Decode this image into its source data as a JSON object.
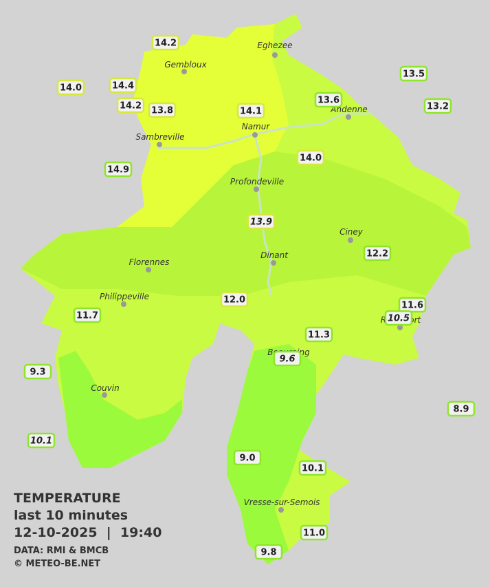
{
  "cities": [
    "Eghezee",
    "Gembloux",
    "Andenne",
    "Namur",
    "Sambreville",
    "Profondeville",
    "Ciney",
    "Dinant",
    "Florennes",
    "Philippeville",
    "Rochefort",
    "Beauraing",
    "Couvin",
    "Vresse-sur-Semois"
  ],
  "stations": [
    "14.2",
    "14.0",
    "14.4",
    "14.2",
    "13.8",
    "14.1",
    "13.6",
    "13.5",
    "13.2",
    "14.9",
    "14.0",
    "13.9",
    "12.2",
    "12.0",
    "11.6",
    "10.5",
    "11.7",
    "11.3",
    "9.6",
    "9.3",
    "8.9",
    "10.1",
    "9.0",
    "10.1",
    "11.0",
    "9.8"
  ],
  "legend": {
    "title": "TEMPERATURE",
    "subtitle": "last 10 minutes",
    "datetime": "12-10-2025  |  19:40",
    "source": "DATA: RMI & BMCB",
    "copyright": "© METEO-BE.NET"
  }
}
